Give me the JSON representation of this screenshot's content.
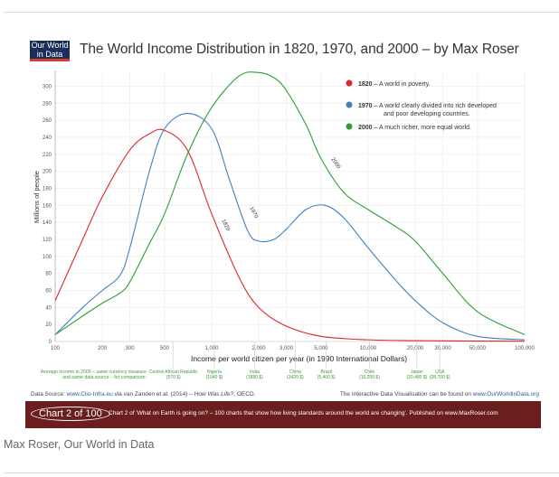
{
  "header": {
    "logo_line1": "Our World",
    "logo_line2": "in Data",
    "title": "The World Income Distribution in 1820, 1970, and 2000 – by Max Roser"
  },
  "chart_data": {
    "type": "line",
    "title": "The World Income Distribution in 1820, 1970, and 2000 – by Max Roser",
    "xlabel": "Income per world citizen per year (in 1990 International Dollars)",
    "ylabel": "Millions of people",
    "xscale": "log",
    "xlim": [
      100,
      100000
    ],
    "ylim": [
      0,
      310
    ],
    "grid": true,
    "x_ticks": [
      100,
      200,
      300,
      500,
      1000,
      2000,
      3000,
      5000,
      10000,
      20000,
      30000,
      50000,
      100000
    ],
    "x_tick_labels": [
      "100",
      "200",
      "300",
      "500",
      "1,000",
      "2,000",
      "3,000",
      "5,000",
      "10,000",
      "20,000",
      "30,000",
      "50,000",
      "100,000"
    ],
    "y_ticks": [
      0,
      20,
      40,
      60,
      80,
      100,
      120,
      140,
      160,
      180,
      200,
      220,
      240,
      260,
      280,
      300
    ],
    "legend_position": "top-right",
    "series": [
      {
        "name": "1820",
        "color": "#e0262b",
        "legend_label": "1820",
        "legend_text": "– A world in poverty.",
        "x": [
          100,
          150,
          200,
          300,
          400,
          500,
          700,
          1000,
          1500,
          2000,
          3000,
          5000,
          10000,
          20000,
          50000,
          100000
        ],
        "y": [
          48,
          120,
          170,
          225,
          244,
          248,
          225,
          150,
          75,
          40,
          18,
          6,
          2,
          1,
          0.5,
          0.3
        ]
      },
      {
        "name": "1970",
        "color": "#3f7fc1",
        "legend_label": "1970",
        "legend_text": "– A world clearly divided into rich developed and poor developing countries.",
        "x": [
          100,
          150,
          200,
          260,
          300,
          400,
          500,
          700,
          1000,
          1300,
          1700,
          2000,
          2500,
          3000,
          4000,
          5300,
          7000,
          10000,
          15000,
          20000,
          30000,
          50000,
          100000
        ],
        "y": [
          8,
          40,
          60,
          78,
          110,
          200,
          250,
          268,
          250,
          190,
          130,
          118,
          120,
          132,
          155,
          160,
          145,
          110,
          72,
          48,
          22,
          6,
          2
        ]
      },
      {
        "name": "2000",
        "color": "#2e9e35",
        "legend_label": "2000",
        "legend_text": "– A much richer, more equal world.",
        "x": [
          100,
          150,
          200,
          260,
          300,
          400,
          500,
          700,
          1000,
          1500,
          2000,
          2500,
          3000,
          4000,
          5000,
          7000,
          10000,
          15000,
          20000,
          30000,
          50000,
          100000
        ],
        "y": [
          8,
          30,
          45,
          57,
          70,
          115,
          150,
          220,
          275,
          312,
          316,
          310,
          295,
          255,
          215,
          175,
          155,
          135,
          118,
          80,
          35,
          8
        ]
      }
    ],
    "curve_labels": [
      "1820",
      "1970",
      "2000"
    ],
    "comparison_header_line1": "Average income in 2000 – same currency measure",
    "comparison_header_line2": "and same data source – for comparison:",
    "comparison_markers": [
      {
        "country": "Central African Republic",
        "value_label": "(570 $)",
        "x": 570
      },
      {
        "country": "Nigeria",
        "value_label": "(1040 $)",
        "x": 1040
      },
      {
        "country": "India",
        "value_label": "(1880 $)",
        "x": 1880
      },
      {
        "country": "China",
        "value_label": "(3420 $)",
        "x": 3420
      },
      {
        "country": "Brazil",
        "value_label": "(5,400 $)",
        "x": 5400
      },
      {
        "country": "Chile",
        "value_label": "(10,200 $)",
        "x": 10200
      },
      {
        "country": "Japan",
        "value_label": "(20,480 $)",
        "x": 20480
      },
      {
        "country": "USA",
        "value_label": "(28,700 $)",
        "x": 28700
      }
    ]
  },
  "footer": {
    "source_prefix": "Data Source: ",
    "source_link": "www.Clio-Infra.eu",
    "source_mid": " via van Zanden et al. (2014) – ",
    "source_italic": "How Was Life?",
    "source_suffix": ", OECD.",
    "interactive_prefix": "The Interactive Data Visualisation can be found on ",
    "interactive_link": "www.OurWorldinData.org",
    "badge": "Chart 2 of 100",
    "banner_text": "Chart 2 of 'What on Earth is going on? – 100 charts that show how living standards around the world are changing'. Published on www.MaxRoser.com"
  },
  "credit": "Max Roser, Our World in Data"
}
